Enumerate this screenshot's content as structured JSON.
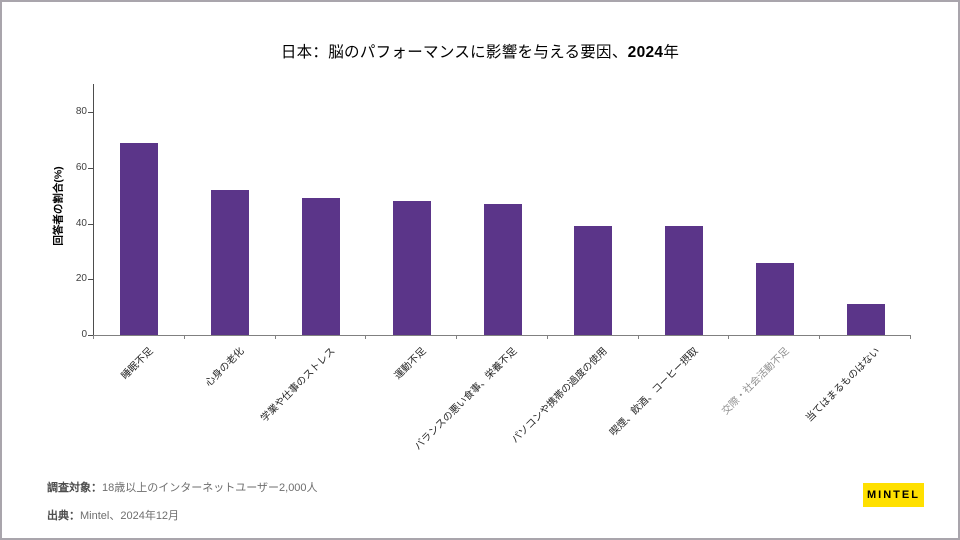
{
  "title": {
    "prefix": "日本：脳のパフォーマンスに影響を与える要因、",
    "bold": "2024",
    "suffix": "年"
  },
  "chart_data": {
    "type": "bar",
    "title": "日本：脳のパフォーマンスに影響を与える要因、2024年",
    "categories": [
      "睡眠不足",
      "心身の老化",
      "学業や仕事のストレス",
      "運動不足",
      "バランスの悪い食事、栄養不足",
      "パソコンや携帯の過度の使用",
      "喫煙、飲酒、コーヒー摂取",
      "交際・社会活動不足",
      "当てはまるものはない"
    ],
    "values": [
      69,
      52,
      49,
      48,
      47,
      39,
      39,
      26,
      11
    ],
    "muted_index": 7,
    "xlabel": "",
    "ylabel": "回答者の割合(%)",
    "ylim": [
      0,
      90
    ],
    "yticks": [
      0,
      20,
      40,
      60,
      80
    ],
    "grid": "off",
    "legend": "none",
    "bar_color": "#5b3589"
  },
  "footer": {
    "base_label": "調査対象：",
    "base_text": "18歳以上のインターネットユーザー2,000人",
    "source_label": "出典：",
    "source_text": "Mintel、2024年12月",
    "logo_text": "MINTEL",
    "logo_bg": "#ffe000"
  },
  "frame_border_color": "#a9a5ac"
}
